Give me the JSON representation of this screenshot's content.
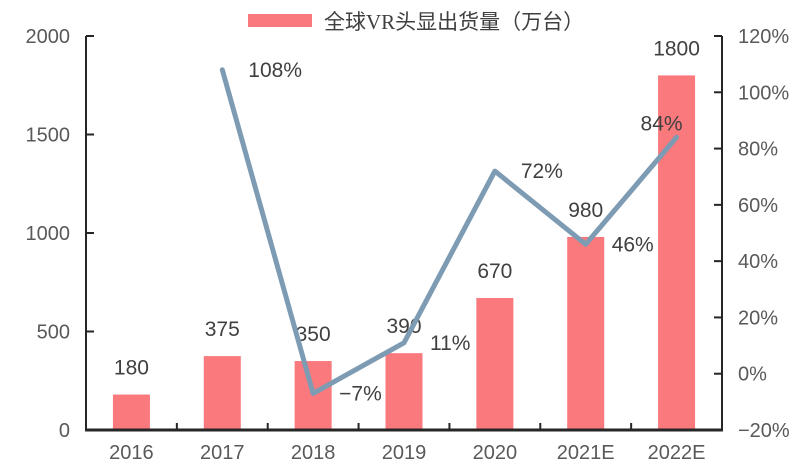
{
  "chart_data": {
    "type": "bar",
    "title": "",
    "legend": [
      "全球VR头显出货量（万台）"
    ],
    "legend_position": "top-center",
    "grid": false,
    "categories": [
      "2016",
      "2017",
      "2018",
      "2019",
      "2020",
      "2021E",
      "2022E"
    ],
    "series": [
      {
        "type": "bar",
        "name": "全球VR头显出货量（万台）",
        "axis": "left",
        "values": [
          180,
          375,
          350,
          390,
          670,
          980,
          1800
        ],
        "data_labels": [
          "180",
          "375",
          "350",
          "390",
          "670",
          "980",
          "1800"
        ]
      },
      {
        "type": "line",
        "name": "",
        "axis": "right",
        "values": [
          null,
          108,
          -7,
          11,
          72,
          46,
          84
        ],
        "data_labels": [
          null,
          "108%",
          "−7%",
          "11%",
          "72%",
          "46%",
          "84%"
        ]
      }
    ],
    "axes": {
      "left": {
        "min": 0,
        "max": 2000,
        "tick_values": [
          0,
          500,
          1000,
          1500,
          2000
        ],
        "tick_labels": [
          "0",
          "500",
          "1000",
          "1500",
          "2000"
        ]
      },
      "right": {
        "min": -20,
        "max": 120,
        "tick_values": [
          -20,
          0,
          20,
          40,
          60,
          80,
          100,
          120
        ],
        "tick_labels": [
          "−20%",
          "0%",
          "20%",
          "40%",
          "60%",
          "80%",
          "100%",
          "120%"
        ]
      }
    },
    "colors": {
      "bar": "#F9797D",
      "line": "#7E9BB4",
      "axis": "#262626",
      "tick_text": "#595959",
      "data_label_text": "#404040"
    }
  }
}
